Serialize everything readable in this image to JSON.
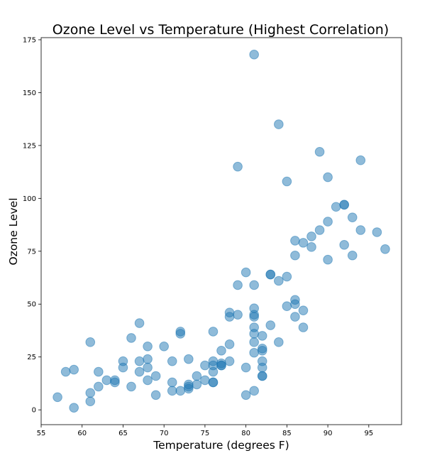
{
  "chart_data": {
    "type": "scatter",
    "title": "Ozone Level vs Temperature (Highest Correlation)",
    "xlabel": "Temperature (degrees F)",
    "ylabel": "Ozone Level",
    "xlim": [
      55,
      99
    ],
    "ylim": [
      -7,
      176
    ],
    "xticks": [
      55,
      60,
      65,
      70,
      75,
      80,
      85,
      90,
      95
    ],
    "yticks": [
      0,
      25,
      50,
      75,
      100,
      125,
      150,
      175
    ],
    "grid": false,
    "legend": "none",
    "marker_color": "#1f77b4",
    "marker_alpha": 0.5,
    "points": [
      [
        57,
        6
      ],
      [
        58,
        18
      ],
      [
        59,
        19
      ],
      [
        59,
        1
      ],
      [
        61,
        32
      ],
      [
        61,
        8
      ],
      [
        61,
        4
      ],
      [
        62,
        18
      ],
      [
        62,
        11
      ],
      [
        63,
        14
      ],
      [
        64,
        14
      ],
      [
        64,
        13
      ],
      [
        65,
        23
      ],
      [
        65,
        20
      ],
      [
        66,
        34
      ],
      [
        66,
        11
      ],
      [
        67,
        41
      ],
      [
        67,
        23
      ],
      [
        67,
        18
      ],
      [
        68,
        30
      ],
      [
        68,
        24
      ],
      [
        68,
        20
      ],
      [
        68,
        14
      ],
      [
        69,
        16
      ],
      [
        69,
        7
      ],
      [
        70,
        30
      ],
      [
        71,
        23
      ],
      [
        71,
        13
      ],
      [
        71,
        9
      ],
      [
        72,
        37
      ],
      [
        72,
        36
      ],
      [
        72,
        9
      ],
      [
        73,
        24
      ],
      [
        73,
        12
      ],
      [
        73,
        11
      ],
      [
        73,
        10
      ],
      [
        74,
        16
      ],
      [
        74,
        12
      ],
      [
        75,
        21
      ],
      [
        75,
        14
      ],
      [
        76,
        37
      ],
      [
        76,
        23
      ],
      [
        76,
        21
      ],
      [
        76,
        18
      ],
      [
        76,
        13
      ],
      [
        76,
        13
      ],
      [
        77,
        28
      ],
      [
        77,
        22
      ],
      [
        77,
        21
      ],
      [
        77,
        21
      ],
      [
        78,
        46
      ],
      [
        78,
        44
      ],
      [
        78,
        31
      ],
      [
        78,
        23
      ],
      [
        79,
        115
      ],
      [
        79,
        59
      ],
      [
        79,
        45
      ],
      [
        80,
        65
      ],
      [
        80,
        20
      ],
      [
        80,
        7
      ],
      [
        81,
        168
      ],
      [
        81,
        59
      ],
      [
        81,
        48
      ],
      [
        81,
        45
      ],
      [
        81,
        44
      ],
      [
        81,
        39
      ],
      [
        81,
        36
      ],
      [
        81,
        32
      ],
      [
        81,
        27
      ],
      [
        81,
        9
      ],
      [
        82,
        35
      ],
      [
        82,
        29
      ],
      [
        82,
        28
      ],
      [
        82,
        23
      ],
      [
        82,
        20
      ],
      [
        82,
        16
      ],
      [
        82,
        16
      ],
      [
        83,
        64
      ],
      [
        83,
        64
      ],
      [
        83,
        40
      ],
      [
        84,
        135
      ],
      [
        84,
        61
      ],
      [
        84,
        32
      ],
      [
        85,
        108
      ],
      [
        85,
        63
      ],
      [
        85,
        49
      ],
      [
        86,
        80
      ],
      [
        86,
        73
      ],
      [
        86,
        52
      ],
      [
        86,
        50
      ],
      [
        86,
        44
      ],
      [
        87,
        79
      ],
      [
        87,
        47
      ],
      [
        87,
        39
      ],
      [
        88,
        82
      ],
      [
        88,
        77
      ],
      [
        89,
        122
      ],
      [
        89,
        85
      ],
      [
        90,
        110
      ],
      [
        90,
        89
      ],
      [
        90,
        71
      ],
      [
        91,
        96
      ],
      [
        92,
        97
      ],
      [
        92,
        97
      ],
      [
        92,
        78
      ],
      [
        93,
        91
      ],
      [
        93,
        73
      ],
      [
        94,
        118
      ],
      [
        94,
        85
      ],
      [
        96,
        84
      ],
      [
        97,
        76
      ]
    ]
  }
}
